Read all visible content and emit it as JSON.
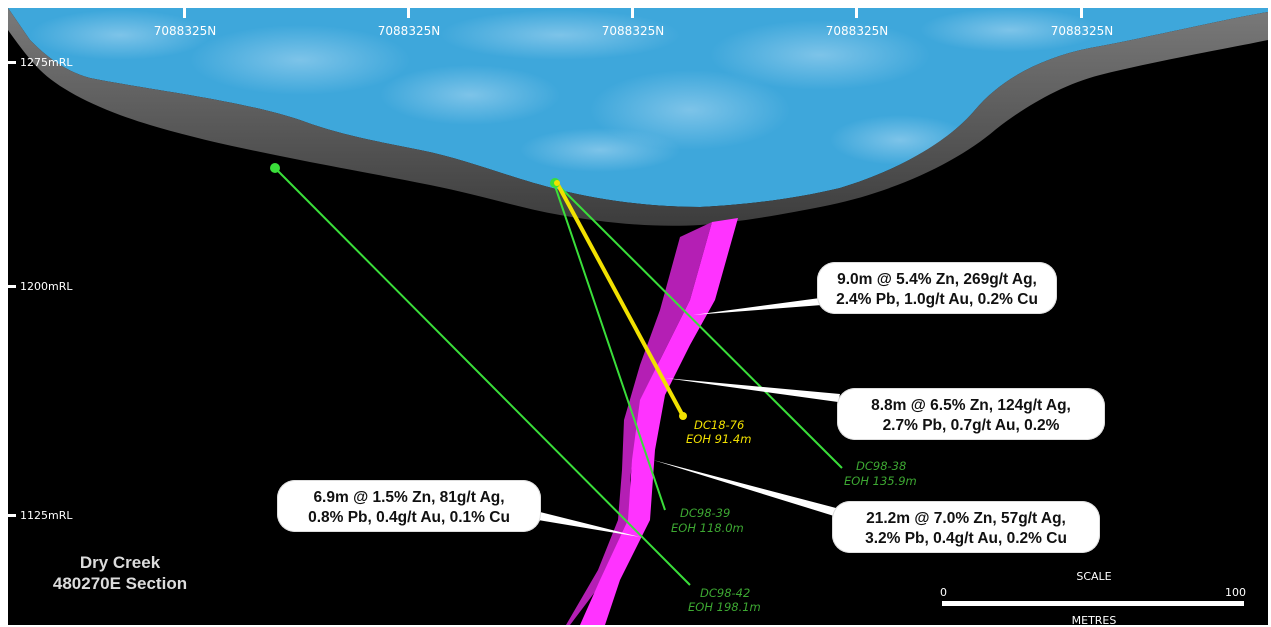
{
  "grid": {
    "northings": [
      "7088325N",
      "7088325N",
      "7088325N",
      "7088325N",
      "7088325N"
    ],
    "elevations": [
      "1275mRL",
      "1200mRL",
      "1125mRL"
    ]
  },
  "drillholes": [
    {
      "id": "DC18-76",
      "eoh": "EOH 91.4m",
      "color": "#f2e100"
    },
    {
      "id": "DC98-38",
      "eoh": "EOH 135.9m",
      "color": "#3da832"
    },
    {
      "id": "DC98-39",
      "eoh": "EOH 118.0m",
      "color": "#3da832"
    },
    {
      "id": "DC98-42",
      "eoh": "EOH 198.1m",
      "color": "#3da832"
    }
  ],
  "intercepts": [
    {
      "lines": [
        "9.0m @ 5.4% Zn, 269g/t Ag,",
        "2.4% Pb, 1.0g/t Au, 0.2% Cu"
      ]
    },
    {
      "lines": [
        "8.8m @ 6.5% Zn, 124g/t Ag,",
        "2.7% Pb,  0.7g/t Au, 0.2%"
      ]
    },
    {
      "lines": [
        "21.2m @ 7.0% Zn, 57g/t Ag,",
        "3.2% Pb, 0.4g/t Au, 0.2% Cu"
      ]
    },
    {
      "lines": [
        "6.9m @ 1.5% Zn, 81g/t Ag,",
        "0.8% Pb, 0.4g/t Au, 0.1% Cu"
      ]
    }
  ],
  "title": {
    "line1": "Dry Creek",
    "line2": "480270E Section"
  },
  "scale": {
    "title": "SCALE",
    "min": "0",
    "max": "100",
    "units": "METRES"
  },
  "colors": {
    "background": "#000000",
    "sky": "#3ea7db",
    "ground_surface": "#5a5a5a",
    "lode": "#ff33ff",
    "lode_dark": "#b41fb4",
    "hole_green": "#3da832",
    "hole_yellow": "#f2e100"
  }
}
